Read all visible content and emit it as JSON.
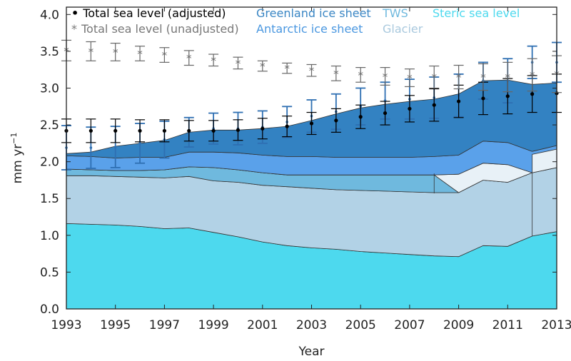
{
  "chart_data": {
    "type": "area",
    "xlabel": "Year",
    "ylabel": "mm yr",
    "ylabel_sup": "−1",
    "xlim": [
      1993,
      2013
    ],
    "ylim": [
      0,
      4.1
    ],
    "xticks": [
      "1993",
      "1995",
      "1997",
      "1999",
      "2001",
      "2003",
      "2005",
      "2007",
      "2009",
      "2011",
      "2013"
    ],
    "yticks": [
      "0.0",
      "0.5",
      "1.0",
      "1.5",
      "2.0",
      "2.5",
      "3.0",
      "3.5",
      "4.0"
    ],
    "x": [
      1993,
      1994,
      1995,
      1996,
      1997,
      1998,
      1999,
      2000,
      2001,
      2002,
      2003,
      2004,
      2005,
      2006,
      2007,
      2008,
      2009,
      2010,
      2011,
      2012,
      2013
    ],
    "stacked_series": [
      {
        "name": "Steric sea level",
        "color": "#4dd9ee",
        "values": [
          1.16,
          1.15,
          1.14,
          1.12,
          1.09,
          1.1,
          1.04,
          0.98,
          0.91,
          0.86,
          0.83,
          0.81,
          0.78,
          0.76,
          0.74,
          0.72,
          0.71,
          0.86,
          0.85,
          0.99,
          1.05
        ]
      },
      {
        "name": "Glacier",
        "color": "#b2d2e6",
        "values": [
          0.65,
          0.66,
          0.66,
          0.67,
          0.69,
          0.7,
          0.7,
          0.74,
          0.77,
          0.8,
          0.81,
          0.81,
          0.83,
          0.84,
          0.85,
          0.86,
          0.87,
          0.89,
          0.87,
          0.86,
          0.87
        ]
      },
      {
        "name": "TWS",
        "color": "#6fb9de",
        "values": [
          0.09,
          0.08,
          0.08,
          0.09,
          0.11,
          0.13,
          0.18,
          0.17,
          0.17,
          0.16,
          0.18,
          0.2,
          0.21,
          0.22,
          0.23,
          0.24,
          0.0,
          0.0,
          0.0,
          0.0,
          0.0
        ]
      },
      {
        "name": "TWS (uncertain)",
        "color": "#e8f1f7",
        "values": [
          0,
          0,
          0,
          0,
          0,
          0,
          0,
          0,
          0,
          0,
          0,
          0,
          0,
          0,
          0,
          0,
          0.25,
          0.23,
          0.24,
          0.0,
          0.0
        ]
      },
      {
        "name": "Antarctic ice sheet",
        "color": "#5aa1ea",
        "values": [
          0.18,
          0.18,
          0.17,
          0.18,
          0.17,
          0.2,
          0.21,
          0.23,
          0.24,
          0.25,
          0.25,
          0.24,
          0.24,
          0.24,
          0.24,
          0.25,
          0.26,
          0.3,
          0.3,
          0.29,
          0.3
        ]
      },
      {
        "name": "Greenland ice sheet",
        "color": "#3382c2",
        "values": [
          0.03,
          0.06,
          0.16,
          0.19,
          0.23,
          0.27,
          0.3,
          0.31,
          0.36,
          0.41,
          0.49,
          0.59,
          0.67,
          0.72,
          0.76,
          0.78,
          0.83,
          0.82,
          0.85,
          0.91,
          0.85
        ]
      }
    ],
    "extra_band": {
      "name": "Glacier (uncertain)",
      "color": "#e8f1f7",
      "x": [
        2012,
        2013
      ],
      "lower": [
        1.85,
        1.92
      ],
      "upper": [
        2.1,
        2.17
      ]
    },
    "error_series": [
      {
        "name": "Total sea level (adjusted)",
        "color": "#2e6fb2",
        "values": [
          2.19,
          2.19,
          2.2,
          2.25,
          2.3,
          2.4,
          2.45,
          2.45,
          2.47,
          2.54,
          2.62,
          2.68,
          2.75,
          2.83,
          2.85,
          2.87,
          2.9,
          3.1,
          3.1,
          3.35,
          3.35
        ],
        "errors": [
          0.3,
          0.28,
          0.28,
          0.27,
          0.25,
          0.2,
          0.21,
          0.22,
          0.22,
          0.21,
          0.22,
          0.24,
          0.25,
          0.25,
          0.27,
          0.28,
          0.29,
          0.25,
          0.3,
          0.22,
          0.27
        ]
      },
      {
        "name": "Total sea level (adjusted) mean",
        "color": "#000000",
        "values": [
          2.42,
          2.42,
          2.42,
          2.42,
          2.42,
          2.42,
          2.42,
          2.43,
          2.45,
          2.48,
          2.52,
          2.56,
          2.61,
          2.66,
          2.72,
          2.77,
          2.82,
          2.86,
          2.89,
          2.92,
          2.93
        ],
        "errors": [
          0.16,
          0.16,
          0.16,
          0.15,
          0.15,
          0.14,
          0.14,
          0.14,
          0.14,
          0.14,
          0.15,
          0.16,
          0.16,
          0.16,
          0.18,
          0.22,
          0.22,
          0.22,
          0.24,
          0.25,
          0.26
        ]
      },
      {
        "name": "Total sea level (unadjusted)",
        "color": "#666666",
        "values": [
          3.51,
          3.5,
          3.49,
          3.47,
          3.45,
          3.41,
          3.38,
          3.34,
          3.3,
          3.27,
          3.24,
          3.2,
          3.18,
          3.16,
          3.14,
          3.15,
          3.15,
          3.15,
          3.15,
          3.18,
          3.19
        ],
        "errors": [
          0.14,
          0.13,
          0.12,
          0.1,
          0.1,
          0.1,
          0.08,
          0.08,
          0.07,
          0.07,
          0.08,
          0.1,
          0.1,
          0.12,
          0.12,
          0.15,
          0.16,
          0.18,
          0.2,
          0.22,
          0.25
        ]
      }
    ],
    "legend": [
      {
        "label": "Total sea level (adjusted)",
        "color": "#000000",
        "marker": "•"
      },
      {
        "label": "Total sea level (unadjusted)",
        "color": "#777777",
        "marker": "*"
      },
      {
        "label": "Greenland ice sheet",
        "color": "#3a86c4"
      },
      {
        "label": "Antarctic ice sheet",
        "color": "#4a97e0"
      },
      {
        "label": "TWS",
        "color": "#6fb9de"
      },
      {
        "label": "Glacier",
        "color": "#a9c9de"
      },
      {
        "label": "Steric sea level",
        "color": "#4dd9ee"
      }
    ]
  }
}
